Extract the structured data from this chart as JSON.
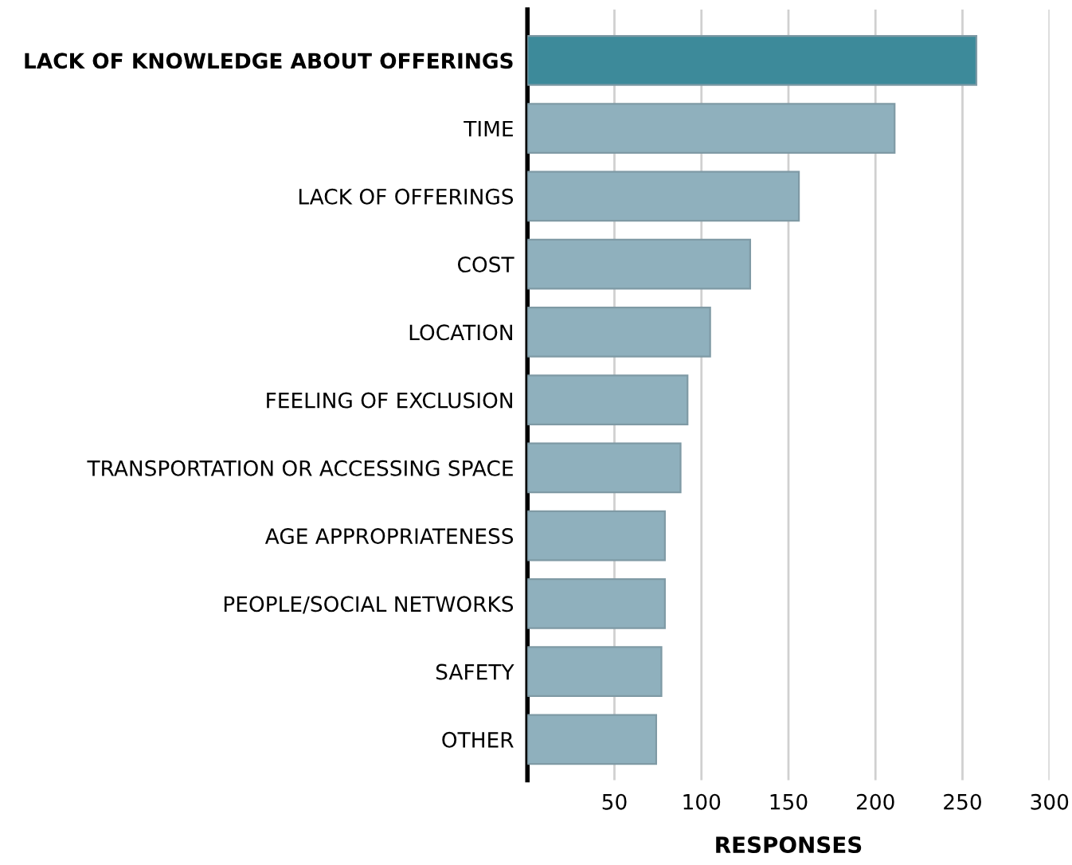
{
  "chart_data": {
    "type": "bar",
    "orientation": "horizontal",
    "xlabel": "RESPONSES",
    "categories": [
      "LACK OF KNOWLEDGE ABOUT OFFERINGS",
      "TIME",
      "LACK OF OFFERINGS",
      "COST",
      "LOCATION",
      "FEELING OF EXCLUSION",
      "TRANSPORTATION OR ACCESSING SPACE",
      "AGE APPROPRIATENESS",
      "PEOPLE/SOCIAL NETWORKS",
      "SAFETY",
      "OTHER"
    ],
    "values": [
      258,
      211,
      156,
      128,
      105,
      92,
      88,
      79,
      79,
      77,
      74
    ],
    "colors": [
      "#3d8a9a",
      "#8fb0bd",
      "#8fb0bd",
      "#8fb0bd",
      "#8fb0bd",
      "#8fb0bd",
      "#8fb0bd",
      "#8fb0bd",
      "#8fb0bd",
      "#8fb0bd",
      "#8fb0bd"
    ],
    "xlim": [
      0,
      300
    ],
    "xticks": [
      50,
      100,
      150,
      200,
      250,
      300
    ],
    "grid": "x"
  }
}
